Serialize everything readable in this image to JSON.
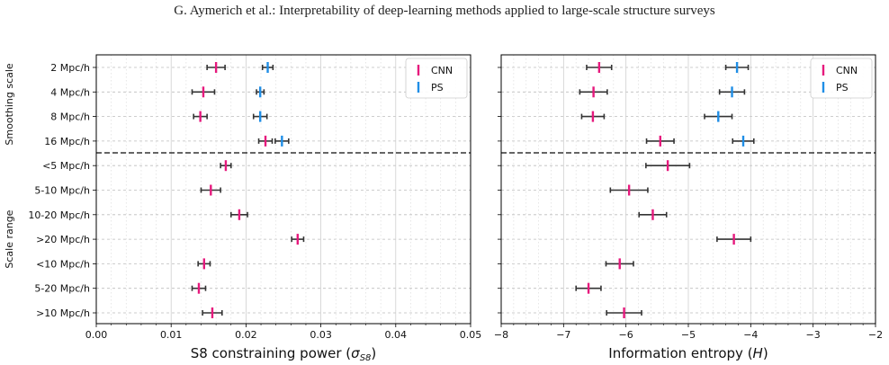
{
  "header": "G. Aymerich  et al.: Interpretability of deep-learning methods applied to large-scale structure surveys",
  "colors": {
    "cnn": "#e6197d",
    "ps": "#1f8ee6",
    "err": "#333333",
    "grid": "#bdbdbd",
    "divider": "#333333"
  },
  "row_labels": [
    "2 Mpc/h",
    "4 Mpc/h",
    "8 Mpc/h",
    "16 Mpc/h",
    "<5 Mpc/h",
    "5-10 Mpc/h",
    "10-20 Mpc/h",
    ">20 Mpc/h",
    "<10 Mpc/h",
    "5-20 Mpc/h",
    ">10 Mpc/h"
  ],
  "group_labels": {
    "top": "Smoothing scale",
    "bottom": "Scale range"
  },
  "chart_data": [
    {
      "type": "errorbar",
      "xlabel_main": "S8 constraining power (",
      "xlabel_sym": "σ",
      "xlabel_sub": "S8",
      "xlabel_end": ")",
      "xlim": [
        0.0,
        0.05
      ],
      "xticks": [
        "0.00",
        "0.01",
        "0.02",
        "0.03",
        "0.04",
        "0.05"
      ],
      "legend": {
        "position": "top-right",
        "entries": [
          "CNN",
          "PS"
        ]
      },
      "series": [
        {
          "name": "CNN",
          "points": [
            {
              "y": 0,
              "x": 0.016,
              "err": 0.0012
            },
            {
              "y": 1,
              "x": 0.0143,
              "err": 0.0015
            },
            {
              "y": 2,
              "x": 0.0139,
              "err": 0.0009
            },
            {
              "y": 3,
              "x": 0.0226,
              "err": 0.0009
            },
            {
              "y": 4,
              "x": 0.0173,
              "err": 0.0007
            },
            {
              "y": 5,
              "x": 0.0153,
              "err": 0.0013
            },
            {
              "y": 6,
              "x": 0.0191,
              "err": 0.0011
            },
            {
              "y": 7,
              "x": 0.0269,
              "err": 0.0008
            },
            {
              "y": 8,
              "x": 0.0144,
              "err": 0.0008
            },
            {
              "y": 9,
              "x": 0.0137,
              "err": 0.0009
            },
            {
              "y": 10,
              "x": 0.0155,
              "err": 0.0013
            }
          ]
        },
        {
          "name": "PS",
          "points": [
            {
              "y": 0,
              "x": 0.0229,
              "err": 0.0007
            },
            {
              "y": 1,
              "x": 0.0219,
              "err": 0.0005
            },
            {
              "y": 2,
              "x": 0.0219,
              "err": 0.0009
            },
            {
              "y": 3,
              "x": 0.0248,
              "err": 0.0009
            }
          ]
        }
      ]
    },
    {
      "type": "errorbar",
      "xlabel_main": "Information entropy (",
      "xlabel_sym": "H",
      "xlabel_sub": "",
      "xlabel_end": ")",
      "xlim": [
        -8,
        -2
      ],
      "xticks": [
        "−8",
        "−7",
        "−6",
        "−5",
        "−4",
        "−3",
        "−2"
      ],
      "legend": {
        "position": "top-right",
        "entries": [
          "CNN",
          "PS"
        ]
      },
      "series": [
        {
          "name": "CNN",
          "points": [
            {
              "y": 0,
              "x": -6.43,
              "err": 0.2
            },
            {
              "y": 1,
              "x": -6.52,
              "err": 0.22
            },
            {
              "y": 2,
              "x": -6.53,
              "err": 0.18
            },
            {
              "y": 3,
              "x": -5.45,
              "err": 0.22
            },
            {
              "y": 4,
              "x": -5.33,
              "err": 0.35
            },
            {
              "y": 5,
              "x": -5.95,
              "err": 0.3
            },
            {
              "y": 6,
              "x": -5.57,
              "err": 0.22
            },
            {
              "y": 7,
              "x": -4.27,
              "err": 0.27
            },
            {
              "y": 8,
              "x": -6.1,
              "err": 0.22
            },
            {
              "y": 9,
              "x": -6.6,
              "err": 0.2
            },
            {
              "y": 10,
              "x": -6.03,
              "err": 0.28
            }
          ]
        },
        {
          "name": "PS",
          "points": [
            {
              "y": 0,
              "x": -4.22,
              "err": 0.18
            },
            {
              "y": 1,
              "x": -4.3,
              "err": 0.2
            },
            {
              "y": 2,
              "x": -4.52,
              "err": 0.22
            },
            {
              "y": 3,
              "x": -4.12,
              "err": 0.17
            }
          ]
        }
      ]
    }
  ]
}
